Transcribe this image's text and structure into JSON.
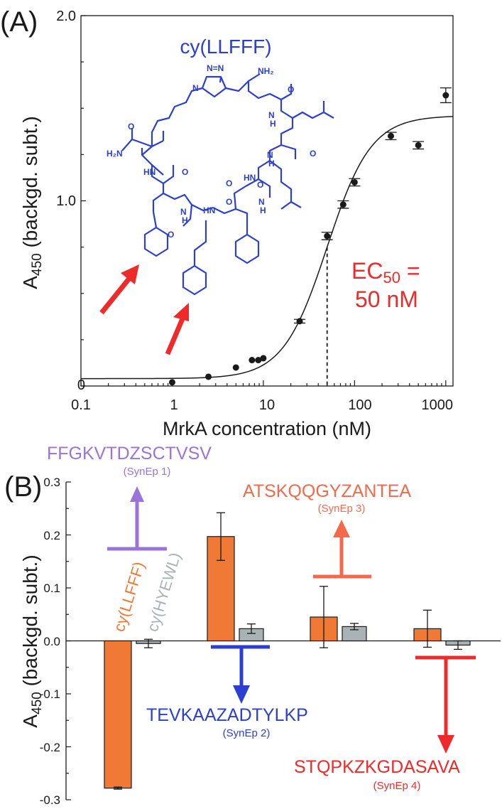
{
  "chart_data": [
    {
      "panel": "(A)",
      "type": "scatter",
      "x_scale": "log",
      "xlabel": "MrkA concentration (nM)",
      "ylabel_parts": [
        "A",
        "450",
        " (backgd. subt.)"
      ],
      "xlim": [
        0.1,
        1200
      ],
      "ylim": [
        0,
        2.0
      ],
      "x_ticks": [
        "0.1",
        "1",
        "10",
        "100",
        "1000"
      ],
      "y_ticks": [
        "0",
        "1.0",
        "2.0"
      ],
      "points": [
        {
          "x": 1.0,
          "y": 0.02
        },
        {
          "x": 2.5,
          "y": 0.05
        },
        {
          "x": 5.0,
          "y": 0.1
        },
        {
          "x": 7.5,
          "y": 0.14
        },
        {
          "x": 8.8,
          "y": 0.14
        },
        {
          "x": 10.0,
          "y": 0.15
        },
        {
          "x": 25.0,
          "y": 0.35
        },
        {
          "x": 50.0,
          "y": 0.81
        },
        {
          "x": 75.0,
          "y": 0.98
        },
        {
          "x": 100.0,
          "y": 1.1
        },
        {
          "x": 250.0,
          "y": 1.35
        },
        {
          "x": 500.0,
          "y": 1.3
        },
        {
          "x": 1000.0,
          "y": 1.57
        }
      ],
      "error_bars": [
        0.0,
        0.0,
        0.0,
        0.0,
        0.0,
        0.0,
        0.01,
        0.02,
        0.02,
        0.02,
        0.02,
        0.02,
        0.04
      ],
      "fit": {
        "bottom": 0.04,
        "top": 1.46,
        "ec50_nM": 50,
        "hill": 1.8
      },
      "ec50_annotation": {
        "line1_main": "EC",
        "line1_sub": "50",
        "line1_tail": " =",
        "line2": "50 nM"
      },
      "molecule_label": "cy(LLFFF)",
      "molecule_atoms": [
        "N",
        "N=N",
        "NH₂",
        "O",
        "N",
        "H",
        "H₂N",
        "O",
        "O",
        "HN",
        "N",
        "H",
        "O",
        "HN",
        "O",
        "N",
        "H",
        "HN",
        "O",
        "O",
        "N",
        "H",
        "O",
        "HN",
        "O"
      ]
    },
    {
      "panel": "(B)",
      "type": "bar",
      "ylabel_parts": [
        "A",
        "450",
        " (backgd. subt.)"
      ],
      "ylim": [
        -0.3,
        0.3
      ],
      "y_ticks": [
        "0.3",
        "0.2",
        "0.1",
        "0.0",
        "-0.1",
        "-0.2",
        "-0.3"
      ],
      "groups": 4,
      "series": [
        {
          "name": "cy(LLFFF)",
          "color": "#f07a35",
          "values": [
            -0.278,
            0.197,
            0.045,
            0.023
          ],
          "errors": [
            0.002,
            0.045,
            0.058,
            0.035
          ]
        },
        {
          "name": "cy(HYEWL)",
          "color": "#a9b2b5",
          "values": [
            -0.005,
            0.023,
            0.027,
            -0.008
          ],
          "errors": [
            0.008,
            0.009,
            0.006,
            0.008
          ]
        }
      ],
      "epitopes": [
        {
          "sequence": "FFGKVTDZSCTVSV",
          "name": "(SynEp 1)",
          "color": "#9a74d8",
          "direction": "up"
        },
        {
          "sequence": "TEVKAAZADTYLKP",
          "name": "(SynEp 2)",
          "color": "#2b3fd0",
          "direction": "down"
        },
        {
          "sequence": "ATSKQQGYZANTEA",
          "name": "(SynEp 3)",
          "color": "#f26a4b",
          "direction": "up"
        },
        {
          "sequence": "STQPKZKGDASAVA",
          "name": "(SynEp 4)",
          "color": "#ee2a2a",
          "direction": "down"
        }
      ]
    }
  ]
}
